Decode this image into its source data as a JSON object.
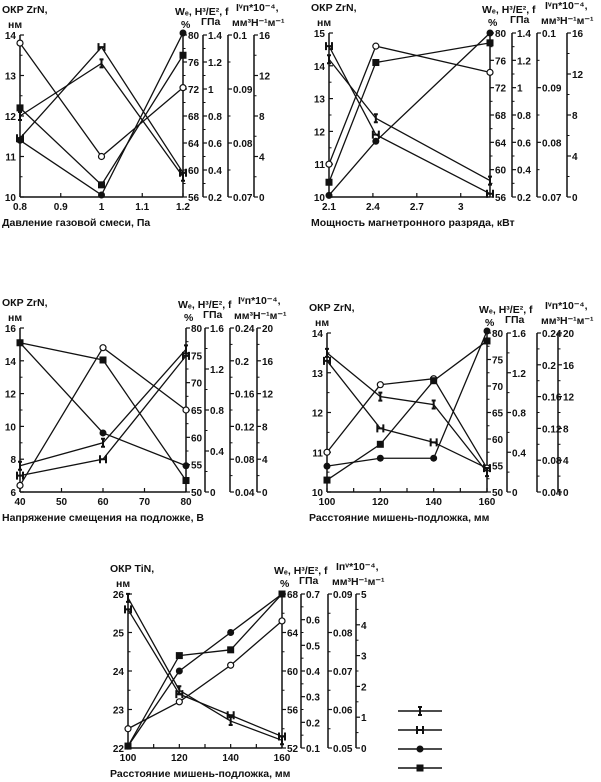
{
  "chart_data": [
    {
      "type": "line",
      "title": "ОКР ZrN,",
      "title_unit": "нм",
      "xlabel": "Давление газовой смеси, Па",
      "x": [
        0.8,
        1,
        1.2
      ],
      "xlim": [
        0.8,
        1.2
      ],
      "xticks": [
        0.8,
        0.9,
        1,
        1.1,
        1.2
      ],
      "xtick_labels": [
        "0.8",
        "0.9",
        "1",
        "1.1",
        "1.2"
      ],
      "ylim": [
        10,
        14
      ],
      "yticks": [
        "10",
        "11",
        "12",
        "13",
        "14"
      ],
      "right_header": {
        "line1": "Wₑ, H³/E², f",
        "line1b": "Iᵛп*10⁻⁴,",
        "we_unit": "%",
        "h_unit": "ГПа",
        "iv_unit": "мм³Н⁻¹м⁻¹"
      },
      "right_axes": [
        {
          "name": "We",
          "ticks": [
            "56",
            "60",
            "64",
            "68",
            "72",
            "76",
            "80"
          ]
        },
        {
          "name": "H3/E2",
          "ticks": [
            "0.2",
            "0.4",
            "0.6",
            "0.8",
            "1",
            "1.2",
            "1.4"
          ]
        },
        {
          "name": "f",
          "ticks": [
            "0.07",
            "0.08",
            "0.09",
            "0.1"
          ]
        },
        {
          "name": "Iv",
          "ticks": [
            "0",
            "4",
            "8",
            "12",
            "16"
          ]
        }
      ],
      "series": [
        {
          "name": "ОКР",
          "marker": "open-circle",
          "values": [
            13.8,
            11.0,
            12.7
          ]
        },
        {
          "name": "filled-circle",
          "marker": "filled-circle",
          "values": [
            11.4,
            10.05,
            14.05
          ]
        },
        {
          "name": "square",
          "marker": "square",
          "values": [
            12.2,
            10.3,
            13.5
          ]
        },
        {
          "name": "H",
          "marker": "H",
          "values": [
            11.45,
            13.7,
            10.6
          ]
        },
        {
          "name": "I",
          "marker": "I",
          "values": [
            12.0,
            13.3,
            10.5
          ]
        }
      ]
    },
    {
      "type": "line",
      "title": "ОКР ZrN,",
      "title_unit": "нм",
      "xlabel": "Мощность магнетронного разряда, кВт",
      "x": [
        2.1,
        2.42,
        3.2
      ],
      "xlim": [
        2.1,
        3.2
      ],
      "xticks": [
        2.1,
        2.4,
        2.7,
        3
      ],
      "xtick_labels": [
        "2.1",
        "2.4",
        "2.7",
        "3"
      ],
      "ylim": [
        10,
        15
      ],
      "yticks": [
        "10",
        "11",
        "12",
        "13",
        "14",
        "15"
      ],
      "right_header": {
        "line1": "Wₑ, H³/E², f",
        "line1b": "Iᵛп*10⁻⁴,",
        "we_unit": "%",
        "h_unit": "ГПа",
        "iv_unit": "мм³Н⁻¹м⁻¹"
      },
      "right_axes": [
        {
          "name": "We",
          "ticks": [
            "56",
            "60",
            "64",
            "68",
            "72",
            "76",
            "80"
          ]
        },
        {
          "name": "H3/E2",
          "ticks": [
            "0.2",
            "0.4",
            "0.6",
            "0.8",
            "1",
            "1.2",
            "1.4"
          ]
        },
        {
          "name": "f",
          "ticks": [
            "0.07",
            "0.08",
            "0.09",
            "0.1"
          ]
        },
        {
          "name": "Iv",
          "ticks": [
            "0",
            "4",
            "8",
            "12",
            "16"
          ]
        }
      ],
      "series": [
        {
          "name": "ОКР",
          "marker": "open-circle",
          "values": [
            11.0,
            14.6,
            13.8
          ]
        },
        {
          "name": "filled-circle",
          "marker": "filled-circle",
          "values": [
            10.05,
            11.7,
            15.0
          ]
        },
        {
          "name": "square",
          "marker": "square",
          "values": [
            10.45,
            14.1,
            14.7
          ]
        },
        {
          "name": "H",
          "marker": "H",
          "values": [
            14.6,
            11.9,
            10.1
          ]
        },
        {
          "name": "I",
          "marker": "I",
          "values": [
            14.2,
            12.4,
            10.5
          ]
        }
      ]
    },
    {
      "type": "line",
      "title": "ОКР ZrN,",
      "title_unit": "нм",
      "xlabel": "Напряжение смещения на подложке, В",
      "x": [
        40,
        60,
        80
      ],
      "xlim": [
        40,
        80
      ],
      "xticks": [
        40,
        50,
        60,
        70,
        80
      ],
      "xtick_labels": [
        "40",
        "50",
        "60",
        "70",
        "80"
      ],
      "ylim": [
        6,
        16
      ],
      "yticks": [
        "6",
        "8",
        "10",
        "12",
        "14",
        "16"
      ],
      "right_header": {
        "line1": "Wₑ, H³/E², f",
        "line1b": "Iᵛп*10⁻⁴,",
        "we_unit": "%",
        "h_unit": "ГПа",
        "iv_unit": "мм³Н⁻¹м⁻¹"
      },
      "right_axes": [
        {
          "name": "We",
          "ticks": [
            "50",
            "55",
            "60",
            "65",
            "70",
            "75",
            "80"
          ]
        },
        {
          "name": "H3/E2",
          "ticks": [
            "0",
            "0.4",
            "0.8",
            "1.2",
            "1.6"
          ]
        },
        {
          "name": "f",
          "ticks": [
            "0.04",
            "0.08",
            "0.12",
            "0.16",
            "0.2",
            "0.24"
          ]
        },
        {
          "name": "Iv",
          "ticks": [
            "0",
            "4",
            "8",
            "12",
            "16",
            "20"
          ]
        }
      ],
      "series": [
        {
          "name": "ОКР",
          "marker": "open-circle",
          "values": [
            6.4,
            14.8,
            11.0
          ]
        },
        {
          "name": "filled-circle",
          "marker": "filled-circle",
          "values": [
            15.1,
            9.6,
            7.6
          ]
        },
        {
          "name": "square",
          "marker": "square",
          "values": [
            15.1,
            14.05,
            6.7
          ]
        },
        {
          "name": "I",
          "marker": "I",
          "values": [
            7.6,
            9.0,
            14.7
          ]
        },
        {
          "name": "H",
          "marker": "H",
          "values": [
            7.0,
            8.0,
            14.3
          ]
        }
      ]
    },
    {
      "type": "line",
      "title": "ОКР ZrN,",
      "title_unit": "нм",
      "xlabel": "Расстояние мишень-подложка, мм",
      "x": [
        100,
        120,
        140,
        160
      ],
      "xlim": [
        100,
        160
      ],
      "xticks": [
        100,
        110,
        120,
        130,
        140,
        150,
        160
      ],
      "xtick_labels": [
        "100",
        "",
        "120",
        "",
        "140",
        "",
        "160"
      ],
      "ylim": [
        10,
        14
      ],
      "yticks": [
        "10",
        "11",
        "12",
        "13",
        "14"
      ],
      "right_header": {
        "line1": "Wₑ, H³/E², f",
        "line1b": "Iᵛп*10⁻⁴,",
        "we_unit": "%",
        "h_unit": "ГПа",
        "iv_unit": "мм³Н⁻¹м⁻¹"
      },
      "right_axes": [
        {
          "name": "We",
          "ticks": [
            "50",
            "55",
            "60",
            "65",
            "70",
            "75",
            "80"
          ]
        },
        {
          "name": "H3/E2",
          "ticks": [
            "0",
            "0.4",
            "0.8",
            "1.2",
            "1.6"
          ]
        },
        {
          "name": "f",
          "ticks": [
            "0.04",
            "0.08",
            "0.12",
            "0.16",
            "0.2",
            "0.24"
          ]
        },
        {
          "name": "Iv",
          "ticks": [
            "0",
            "4",
            "8",
            "12",
            "16",
            "20"
          ]
        }
      ],
      "series": [
        {
          "name": "ОКР",
          "marker": "open-circle",
          "values": [
            11.0,
            12.7,
            12.85,
            10.6
          ]
        },
        {
          "name": "filled-circle",
          "marker": "filled-circle",
          "values": [
            10.65,
            10.85,
            10.85,
            14.05
          ]
        },
        {
          "name": "square",
          "marker": "square",
          "values": [
            10.3,
            11.2,
            12.8,
            13.8
          ]
        },
        {
          "name": "I",
          "marker": "I",
          "values": [
            13.5,
            12.4,
            12.2,
            10.5
          ]
        },
        {
          "name": "H",
          "marker": "H",
          "values": [
            13.3,
            11.6,
            11.25,
            10.6
          ]
        }
      ]
    },
    {
      "type": "line",
      "title": "ОКР TiN,",
      "title_unit": "нм",
      "xlabel": "Расстояние мишень-подложка, мм",
      "x": [
        100,
        120,
        140,
        160
      ],
      "xlim": [
        100,
        160
      ],
      "xticks": [
        100,
        110,
        120,
        130,
        140,
        150,
        160
      ],
      "xtick_labels": [
        "100",
        "",
        "120",
        "",
        "140",
        "",
        "160"
      ],
      "ylim": [
        22,
        26
      ],
      "yticks": [
        "22",
        "23",
        "24",
        "25",
        "26"
      ],
      "right_header": {
        "line1": "Wₑ, H³/E², f",
        "line1b": "Iпᵛ*10⁻⁴,",
        "we_unit": "%",
        "h_unit": "ГПа",
        "iv_unit": "мм³Н⁻¹м⁻¹"
      },
      "right_axes": [
        {
          "name": "We",
          "ticks": [
            "52",
            "56",
            "60",
            "64",
            "68"
          ]
        },
        {
          "name": "H3/E2",
          "ticks": [
            "0.1",
            "0.2",
            "0.3",
            "0.4",
            "0.5",
            "0.6",
            "0.7"
          ]
        },
        {
          "name": "f",
          "ticks": [
            "0.05",
            "0.06",
            "0.07",
            "0.08",
            "0.09"
          ]
        },
        {
          "name": "Iv",
          "ticks": [
            "0",
            "1",
            "2",
            "3",
            "4",
            "5"
          ]
        }
      ],
      "series": [
        {
          "name": "ОКР",
          "marker": "open-circle",
          "values": [
            22.5,
            23.2,
            24.15,
            25.3
          ]
        },
        {
          "name": "filled-circle",
          "marker": "filled-circle",
          "values": [
            22.05,
            24.0,
            25.0,
            26.0
          ]
        },
        {
          "name": "square",
          "marker": "square",
          "values": [
            22.05,
            24.4,
            24.55,
            26.0
          ]
        },
        {
          "name": "H",
          "marker": "H",
          "values": [
            25.6,
            23.4,
            22.85,
            22.3
          ]
        },
        {
          "name": "I",
          "marker": "I",
          "values": [
            25.9,
            23.5,
            22.7,
            22.2
          ]
        }
      ]
    }
  ],
  "legend": {
    "markers": [
      "I",
      "H",
      "filled-circle",
      "square"
    ]
  }
}
